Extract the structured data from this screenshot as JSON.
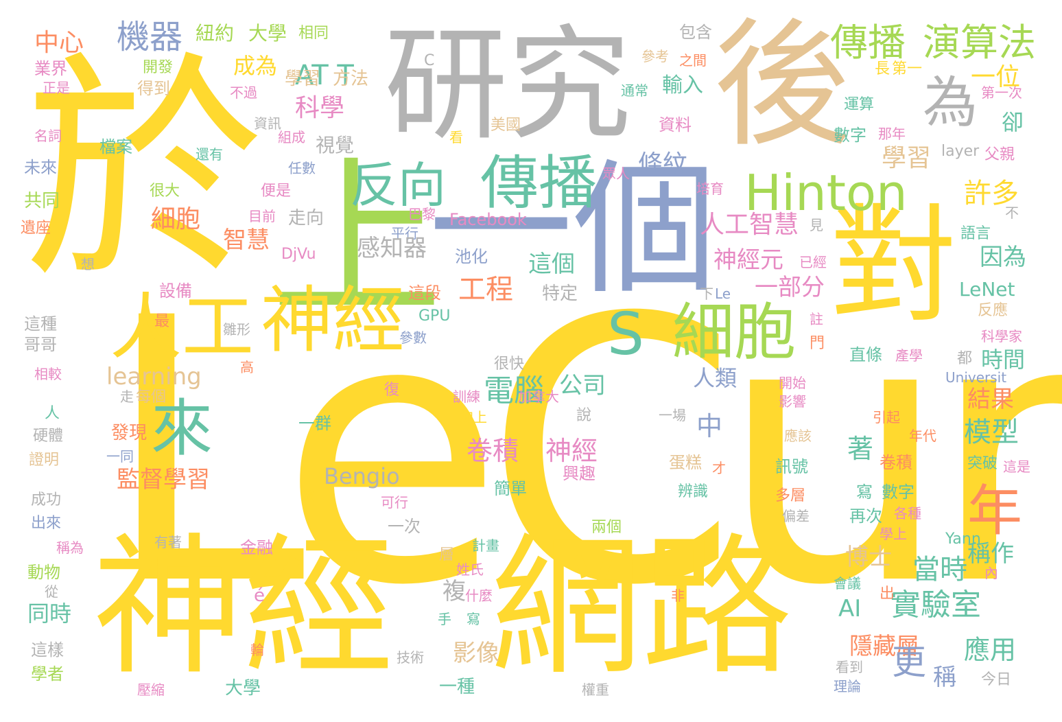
{
  "colors": {
    "yellow": "#ffd92f",
    "gray": "#b3b3b3",
    "tan": "#e5c494",
    "green": "#a6d854",
    "teal": "#66c2a5",
    "blue": "#8da0cb",
    "orange": "#fc8d62",
    "pink": "#e78ac3"
  },
  "words": [
    {
      "text": "LeCun",
      "color": "yellow"
    },
    {
      "text": "於",
      "color": "yellow"
    },
    {
      "text": "上",
      "color": "green"
    },
    {
      "text": "研究",
      "color": "gray"
    },
    {
      "text": "後",
      "color": "tan"
    },
    {
      "text": "一個",
      "color": "blue"
    },
    {
      "text": "神經",
      "color": "yellow"
    },
    {
      "text": "網路",
      "color": "yellow"
    },
    {
      "text": "對",
      "color": "yellow"
    },
    {
      "text": "Hinton",
      "color": "green"
    },
    {
      "text": "細胞",
      "color": "green"
    },
    {
      "text": "S",
      "color": "teal"
    },
    {
      "text": "反向",
      "color": "teal"
    },
    {
      "text": "傳播",
      "color": "teal"
    },
    {
      "text": "神經",
      "color": "yellow"
    },
    {
      "text": "人工",
      "color": "yellow"
    },
    {
      "text": "來",
      "color": "teal"
    },
    {
      "text": "為",
      "color": "gray"
    },
    {
      "text": "年",
      "color": "orange"
    },
    {
      "text": "傳播",
      "color": "green"
    },
    {
      "text": "演算法",
      "color": "green"
    },
    {
      "text": "機器",
      "color": "blue"
    },
    {
      "text": "科學",
      "color": "pink"
    },
    {
      "text": "AT T",
      "color": "teal"
    },
    {
      "text": "成為",
      "color": "yellow"
    },
    {
      "text": "中心",
      "color": "orange"
    },
    {
      "text": "紐約",
      "color": "green"
    },
    {
      "text": "大學",
      "color": "green"
    },
    {
      "text": "業界",
      "color": "pink"
    },
    {
      "text": "開發",
      "color": "green"
    },
    {
      "text": "正是",
      "color": "pink"
    },
    {
      "text": "得到",
      "color": "tan"
    },
    {
      "text": "不過",
      "color": "pink"
    },
    {
      "text": "學習",
      "color": "tan"
    },
    {
      "text": "方法",
      "color": "tan"
    },
    {
      "text": "相同",
      "color": "green"
    },
    {
      "text": "包含",
      "color": "gray"
    },
    {
      "text": "參考",
      "color": "tan"
    },
    {
      "text": "之間",
      "color": "orange"
    },
    {
      "text": "長",
      "color": "yellow"
    },
    {
      "text": "第一",
      "color": "yellow"
    },
    {
      "text": "第一次",
      "color": "pink"
    },
    {
      "text": "通常",
      "color": "teal"
    },
    {
      "text": "運算",
      "color": "teal"
    },
    {
      "text": "輸入",
      "color": "teal"
    },
    {
      "text": "一位",
      "color": "yellow"
    },
    {
      "text": "視覺",
      "color": "gray"
    },
    {
      "text": "資訊",
      "color": "gray"
    },
    {
      "text": "名詞",
      "color": "pink"
    },
    {
      "text": "檔案",
      "color": "teal"
    },
    {
      "text": "組成",
      "color": "pink"
    },
    {
      "text": "看",
      "color": "yellow"
    },
    {
      "text": "美國",
      "color": "tan"
    },
    {
      "text": "資料",
      "color": "pink"
    },
    {
      "text": "數字",
      "color": "teal"
    },
    {
      "text": "那年",
      "color": "pink"
    },
    {
      "text": "卻",
      "color": "teal"
    },
    {
      "text": "學習",
      "color": "tan"
    },
    {
      "text": "layer",
      "color": "gray"
    },
    {
      "text": "父親",
      "color": "pink"
    },
    {
      "text": "未來",
      "color": "blue"
    },
    {
      "text": "還有",
      "color": "teal"
    },
    {
      "text": "任數",
      "color": "blue"
    },
    {
      "text": "條紋",
      "color": "blue"
    },
    {
      "text": "眾人",
      "color": "pink"
    },
    {
      "text": "許多",
      "color": "yellow"
    },
    {
      "text": "共同",
      "color": "green"
    },
    {
      "text": "很大",
      "color": "green"
    },
    {
      "text": "便是",
      "color": "pink"
    },
    {
      "text": "培育",
      "color": "pink"
    },
    {
      "text": "細胞",
      "color": "orange"
    },
    {
      "text": "巴黎",
      "color": "pink"
    },
    {
      "text": "Facebook",
      "color": "pink"
    },
    {
      "text": "不",
      "color": "gray"
    },
    {
      "text": "遺座",
      "color": "orange"
    },
    {
      "text": "目前",
      "color": "pink"
    },
    {
      "text": "走向",
      "color": "gray"
    },
    {
      "text": "人工智慧",
      "color": "pink"
    },
    {
      "text": "見",
      "color": "gray"
    },
    {
      "text": "語言",
      "color": "teal"
    },
    {
      "text": "智慧",
      "color": "orange"
    },
    {
      "text": "平行",
      "color": "blue"
    },
    {
      "text": "神經元",
      "color": "pink"
    },
    {
      "text": "想",
      "color": "gray"
    },
    {
      "text": "DjVu",
      "color": "pink"
    },
    {
      "text": "池化",
      "color": "blue"
    },
    {
      "text": "感知器",
      "color": "gray"
    },
    {
      "text": "這個",
      "color": "teal"
    },
    {
      "text": "已經",
      "color": "pink"
    },
    {
      "text": "因為",
      "color": "teal"
    },
    {
      "text": "一部分",
      "color": "pink"
    },
    {
      "text": "設備",
      "color": "pink"
    },
    {
      "text": "這段",
      "color": "orange"
    },
    {
      "text": "工程",
      "color": "orange"
    },
    {
      "text": "特定",
      "color": "gray"
    },
    {
      "text": "下",
      "color": "gray"
    },
    {
      "text": "Le",
      "color": "blue"
    },
    {
      "text": "LeNet",
      "color": "teal"
    },
    {
      "text": "反應",
      "color": "tan"
    },
    {
      "text": "這種",
      "color": "gray"
    },
    {
      "text": "最",
      "color": "orange"
    },
    {
      "text": "GPU",
      "color": "teal"
    },
    {
      "text": "註",
      "color": "pink"
    },
    {
      "text": "科學家",
      "color": "pink"
    },
    {
      "text": "哥哥",
      "color": "gray"
    },
    {
      "text": "雛形",
      "color": "gray"
    },
    {
      "text": "參數",
      "color": "blue"
    },
    {
      "text": "門",
      "color": "orange"
    },
    {
      "text": "直條",
      "color": "teal"
    },
    {
      "text": "產學",
      "color": "pink"
    },
    {
      "text": "都",
      "color": "gray"
    },
    {
      "text": "時間",
      "color": "teal"
    },
    {
      "text": "相較",
      "color": "pink"
    },
    {
      "text": "高",
      "color": "orange"
    },
    {
      "text": "很快",
      "color": "gray"
    },
    {
      "text": "learning",
      "color": "tan"
    },
    {
      "text": "電腦",
      "color": "teal"
    },
    {
      "text": "公司",
      "color": "teal"
    },
    {
      "text": "人類",
      "color": "blue"
    },
    {
      "text": "Universit",
      "color": "blue"
    },
    {
      "text": "走",
      "color": "gray"
    },
    {
      "text": "每個",
      "color": "tan"
    },
    {
      "text": "復",
      "color": "pink"
    },
    {
      "text": "開始",
      "color": "pink"
    },
    {
      "text": "影響",
      "color": "pink"
    },
    {
      "text": "結果",
      "color": "orange"
    },
    {
      "text": "人",
      "color": "teal"
    },
    {
      "text": "訓練",
      "color": "pink"
    },
    {
      "text": "加拿大",
      "color": "pink"
    },
    {
      "text": "中",
      "color": "blue"
    },
    {
      "text": "加上",
      "color": "yellow"
    },
    {
      "text": "說",
      "color": "gray"
    },
    {
      "text": "一場",
      "color": "gray"
    },
    {
      "text": "引起",
      "color": "orange"
    },
    {
      "text": "硬體",
      "color": "gray"
    },
    {
      "text": "發現",
      "color": "orange"
    },
    {
      "text": "一群",
      "color": "teal"
    },
    {
      "text": "應該",
      "color": "tan"
    },
    {
      "text": "年代",
      "color": "orange"
    },
    {
      "text": "模型",
      "color": "teal"
    },
    {
      "text": "卷積",
      "color": "pink"
    },
    {
      "text": "神經",
      "color": "pink"
    },
    {
      "text": "證明",
      "color": "tan"
    },
    {
      "text": "一同",
      "color": "blue"
    },
    {
      "text": "著",
      "color": "teal"
    },
    {
      "text": "監督學習",
      "color": "orange"
    },
    {
      "text": "Bengio",
      "color": "gray"
    },
    {
      "text": "興趣",
      "color": "pink"
    },
    {
      "text": "蛋糕",
      "color": "tan"
    },
    {
      "text": "才",
      "color": "orange"
    },
    {
      "text": "訊號",
      "color": "teal"
    },
    {
      "text": "卷積",
      "color": "orange"
    },
    {
      "text": "突破",
      "color": "teal"
    },
    {
      "text": "這是",
      "color": "pink"
    },
    {
      "text": "成功",
      "color": "gray"
    },
    {
      "text": "做",
      "color": "yellow"
    },
    {
      "text": "可行",
      "color": "pink"
    },
    {
      "text": "簡單",
      "color": "teal"
    },
    {
      "text": "辨識",
      "color": "teal"
    },
    {
      "text": "多層",
      "color": "orange"
    },
    {
      "text": "寫",
      "color": "teal"
    },
    {
      "text": "數字",
      "color": "teal"
    },
    {
      "text": "偏差",
      "color": "gray"
    },
    {
      "text": "出來",
      "color": "blue"
    },
    {
      "text": "一次",
      "color": "gray"
    },
    {
      "text": "再次",
      "color": "teal"
    },
    {
      "text": "各種",
      "color": "pink"
    },
    {
      "text": "兩個",
      "color": "green"
    },
    {
      "text": "Yann",
      "color": "teal"
    },
    {
      "text": "學上",
      "color": "pink"
    },
    {
      "text": "稱為",
      "color": "pink"
    },
    {
      "text": "有著",
      "color": "gray"
    },
    {
      "text": "金融",
      "color": "pink"
    },
    {
      "text": "計畫",
      "color": "teal"
    },
    {
      "text": "博士",
      "color": "tan"
    },
    {
      "text": "當時",
      "color": "teal"
    },
    {
      "text": "稱作",
      "color": "teal"
    },
    {
      "text": "動物",
      "color": "green"
    },
    {
      "text": "層",
      "color": "tan"
    },
    {
      "text": "姓氏",
      "color": "pink"
    },
    {
      "text": "內",
      "color": "pink"
    },
    {
      "text": "從",
      "color": "gray"
    },
    {
      "text": "會議",
      "color": "teal"
    },
    {
      "text": "什麼",
      "color": "pink"
    },
    {
      "text": "出",
      "color": "orange"
    },
    {
      "text": "é",
      "color": "pink"
    },
    {
      "text": "複",
      "color": "gray"
    },
    {
      "text": "非",
      "color": "orange"
    },
    {
      "text": "AI",
      "color": "teal"
    },
    {
      "text": "實驗室",
      "color": "teal"
    },
    {
      "text": "同時",
      "color": "teal"
    },
    {
      "text": "手",
      "color": "teal"
    },
    {
      "text": "寫",
      "color": "teal"
    },
    {
      "text": "這樣",
      "color": "gray"
    },
    {
      "text": "影像",
      "color": "tan"
    },
    {
      "text": "輪",
      "color": "orange"
    },
    {
      "text": "技術",
      "color": "gray"
    },
    {
      "text": "隱藏層",
      "color": "orange"
    },
    {
      "text": "應用",
      "color": "teal"
    },
    {
      "text": "學者",
      "color": "green"
    },
    {
      "text": "更",
      "color": "blue"
    },
    {
      "text": "稱",
      "color": "blue"
    },
    {
      "text": "看到",
      "color": "gray"
    },
    {
      "text": "大學",
      "color": "teal"
    },
    {
      "text": "一種",
      "color": "teal"
    },
    {
      "text": "壓縮",
      "color": "pink"
    },
    {
      "text": "權重",
      "color": "gray"
    },
    {
      "text": "理論",
      "color": "blue"
    },
    {
      "text": "今日",
      "color": "gray"
    },
    {
      "text": "C",
      "color": "gray"
    }
  ]
}
